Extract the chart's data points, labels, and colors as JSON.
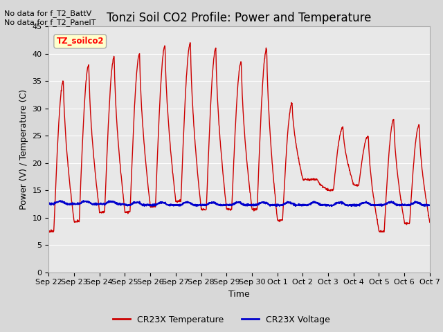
{
  "title": "Tonzi Soil CO2 Profile: Power and Temperature",
  "ylabel": "Power (V) / Temperature (C)",
  "xlabel": "Time",
  "ylim": [
    0,
    45
  ],
  "yticks": [
    0,
    5,
    10,
    15,
    20,
    25,
    30,
    35,
    40,
    45
  ],
  "background_color": "#d8d8d8",
  "plot_bg_color": "#e8e8e8",
  "annotation_top_left": "No data for f_T2_BattV\nNo data for f_T2_PanelT",
  "legend_box_label": "TZ_soilco2",
  "legend_box_color": "#ffffcc",
  "legend_box_border": "#aaaaaa",
  "temp_color": "#cc0000",
  "volt_color": "#0000cc",
  "temp_label": "CR23X Temperature",
  "volt_label": "CR23X Voltage",
  "title_fontsize": 12,
  "axis_fontsize": 9,
  "tick_fontsize": 8,
  "x_tick_labels": [
    "Sep 22",
    "Sep 23",
    "Sep 24",
    "Sep 25",
    "Sep 26",
    "Sep 27",
    "Sep 28",
    "Sep 29",
    "Sep 30",
    "Oct 1",
    "Oct 2",
    "Oct 3",
    "Oct 4",
    "Oct 5",
    "Oct 6",
    "Oct 7"
  ],
  "peak_vals": [
    35,
    38,
    39.5,
    40,
    41.5,
    42,
    41,
    38.5,
    41,
    31,
    17,
    26.5,
    25,
    28,
    27
  ],
  "trough_vals": [
    7.5,
    9.3,
    11,
    11,
    12,
    13,
    11.5,
    11.5,
    11.5,
    9.5,
    17,
    15,
    16,
    7.5,
    9
  ],
  "volt_base": 12.3,
  "volt_amp": 0.5
}
